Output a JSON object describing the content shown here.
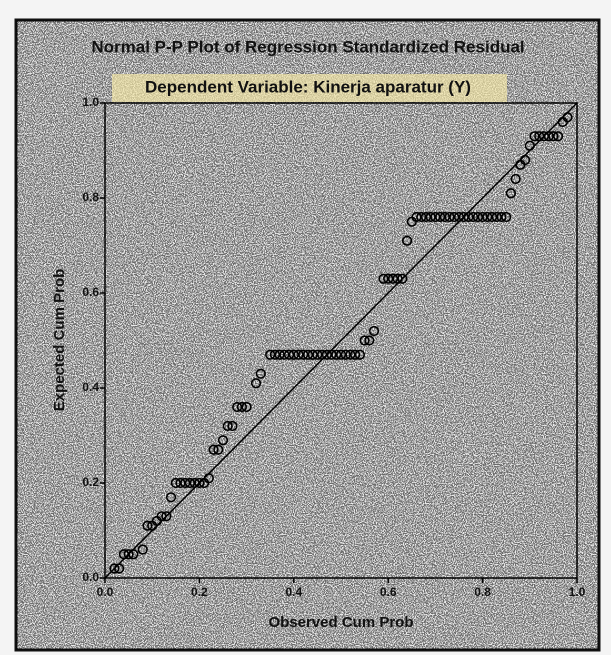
{
  "chart_data": {
    "type": "scatter",
    "title": "Normal P-P Plot of Regression Standardized Residual",
    "subtitle": "Dependent Variable: Kinerja aparatur (Y)",
    "x_label": "Observed Cum Prob",
    "y_label": "Expected Cum Prob",
    "xlim": [
      0,
      1
    ],
    "ylim": [
      0,
      1
    ],
    "xticks": [
      {
        "value": 0,
        "label": "0.0"
      },
      0.2,
      0.4,
      0.6,
      0.8,
      {
        "value": 1,
        "label": "1.0"
      }
    ],
    "yticks": [
      {
        "value": 0,
        "label": "0.0"
      },
      0.2,
      0.4,
      0.6,
      0.8,
      {
        "value": 1,
        "label": "1.0"
      }
    ],
    "color": "#000000",
    "series": [
      {
        "x": [
          0.02,
          0.03,
          0.04,
          0.05,
          0.06,
          0.08,
          0.09,
          0.1,
          0.11,
          0.12,
          0.13,
          0.14,
          0.15,
          0.16,
          0.17,
          0.18,
          0.19,
          0.2,
          0.21,
          0.22,
          0.23,
          0.24,
          0.25,
          0.26,
          0.27,
          0.28,
          0.29,
          0.3,
          0.32,
          0.33,
          0.35,
          0.36,
          0.37,
          0.38,
          0.39,
          0.4,
          0.41,
          0.42,
          0.43,
          0.44,
          0.45,
          0.46,
          0.47,
          0.48,
          0.49,
          0.5,
          0.51,
          0.52,
          0.53,
          0.54,
          0.55,
          0.56,
          0.57,
          0.59,
          0.6,
          0.61,
          0.62,
          0.63,
          0.64,
          0.65,
          0.66,
          0.67,
          0.68,
          0.69,
          0.7,
          0.71,
          0.72,
          0.73,
          0.74,
          0.75,
          0.76,
          0.77,
          0.78,
          0.79,
          0.8,
          0.81,
          0.82,
          0.83,
          0.84,
          0.85,
          0.86,
          0.87,
          0.88,
          0.89,
          0.9,
          0.91,
          0.92,
          0.93,
          0.94,
          0.95,
          0.96,
          0.97,
          0.98
        ],
        "values": [
          0.02,
          0.02,
          0.05,
          0.05,
          0.05,
          0.06,
          0.11,
          0.11,
          0.12,
          0.13,
          0.13,
          0.17,
          0.2,
          0.2,
          0.2,
          0.2,
          0.2,
          0.2,
          0.2,
          0.21,
          0.27,
          0.27,
          0.29,
          0.32,
          0.32,
          0.36,
          0.36,
          0.36,
          0.41,
          0.43,
          0.47,
          0.47,
          0.47,
          0.47,
          0.47,
          0.47,
          0.47,
          0.47,
          0.47,
          0.47,
          0.47,
          0.47,
          0.47,
          0.47,
          0.47,
          0.47,
          0.47,
          0.47,
          0.47,
          0.47,
          0.5,
          0.5,
          0.52,
          0.63,
          0.63,
          0.63,
          0.63,
          0.63,
          0.71,
          0.75,
          0.76,
          0.76,
          0.76,
          0.76,
          0.76,
          0.76,
          0.76,
          0.76,
          0.76,
          0.76,
          0.76,
          0.76,
          0.76,
          0.76,
          0.76,
          0.76,
          0.76,
          0.76,
          0.76,
          0.76,
          0.81,
          0.84,
          0.87,
          0.88,
          0.91,
          0.93,
          0.93,
          0.93,
          0.93,
          0.93,
          0.93,
          0.96,
          0.97
        ]
      }
    ]
  }
}
